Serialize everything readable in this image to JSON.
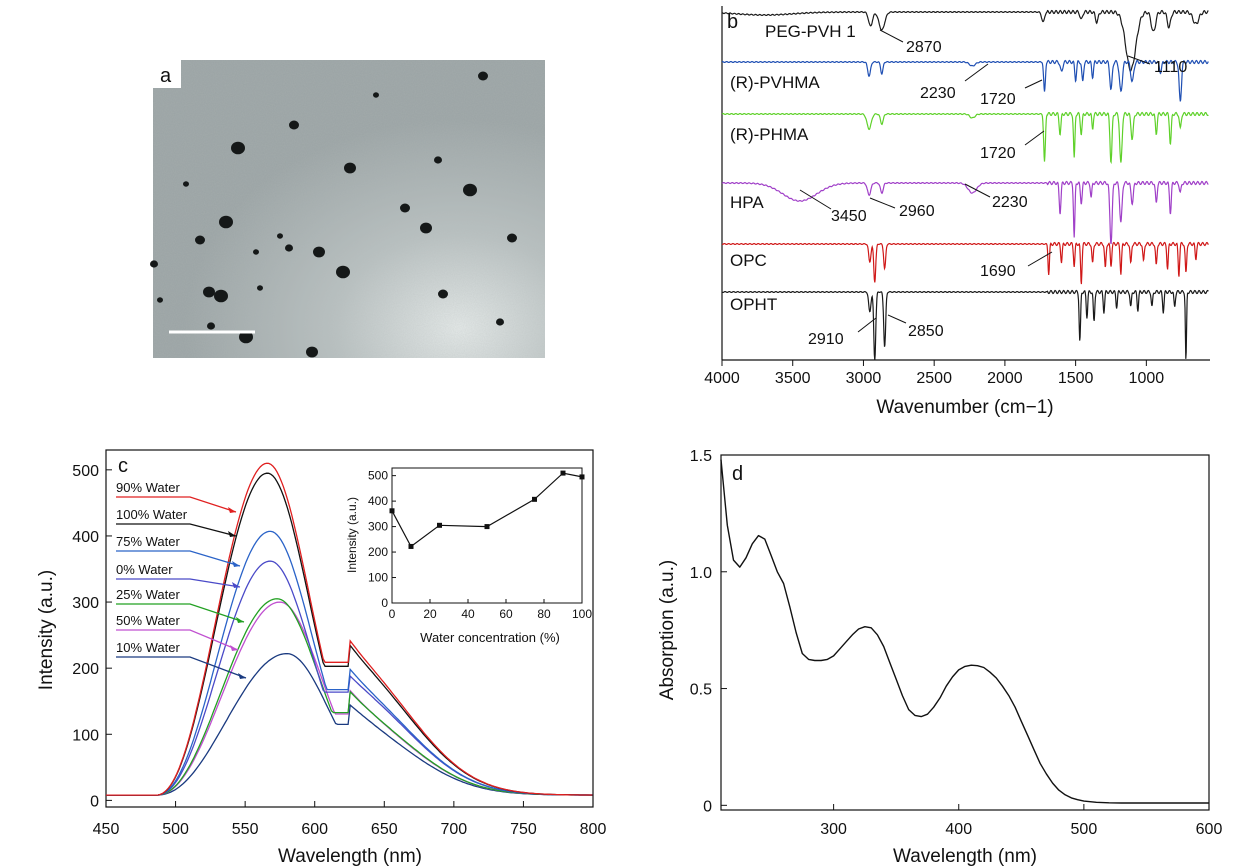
{
  "chart_data": [
    {
      "panel": "a",
      "type": "image",
      "description_label": "a",
      "particles": [
        [
          376,
          95
        ],
        [
          294,
          125
        ],
        [
          238,
          148
        ],
        [
          438,
          160
        ],
        [
          350,
          168
        ],
        [
          186,
          184
        ],
        [
          405,
          208
        ],
        [
          226,
          222
        ],
        [
          289,
          248
        ],
        [
          319,
          252
        ],
        [
          256,
          252
        ],
        [
          512,
          238
        ],
        [
          343,
          272
        ],
        [
          154,
          264
        ],
        [
          209,
          292
        ],
        [
          160,
          300
        ],
        [
          443,
          294
        ],
        [
          246,
          337
        ],
        [
          211,
          326
        ],
        [
          312,
          352
        ],
        [
          280,
          236
        ],
        [
          483,
          76
        ],
        [
          221,
          296
        ],
        [
          500,
          322
        ],
        [
          426,
          228
        ],
        [
          260,
          288
        ],
        [
          200,
          240
        ],
        [
          470,
          190
        ]
      ]
    },
    {
      "panel": "b",
      "type": "line",
      "label": "b",
      "xlabel": "Wavenumber (cm−1)",
      "xlim": [
        4000,
        550
      ],
      "xticks": [
        4000,
        3500,
        3000,
        2500,
        2000,
        1500,
        1000
      ],
      "series": [
        {
          "name": "PEG-PVH 1",
          "color": "#1a1a1a",
          "labels": [
            "2870",
            "1110"
          ]
        },
        {
          "name": "(R)-PVHMA",
          "color": "#1f4fb3",
          "labels": [
            "2230",
            "1720"
          ]
        },
        {
          "name": "(R)-PHMA",
          "color": "#5fd12a",
          "labels": [
            "1720"
          ]
        },
        {
          "name": "HPA",
          "color": "#a040c8",
          "labels": [
            "3450",
            "2960",
            "2230"
          ]
        },
        {
          "name": "OPC",
          "color": "#d01818",
          "labels": [
            "1690"
          ]
        },
        {
          "name": "OPHT",
          "color": "#1a1a1a",
          "labels": [
            "2910",
            "2850"
          ]
        }
      ]
    },
    {
      "panel": "c",
      "type": "line",
      "label": "c",
      "xlabel": "Wavelength (nm)",
      "ylabel": "Intensity (a.u.)",
      "xlim": [
        450,
        800
      ],
      "ylim": [
        0,
        510
      ],
      "xticks": [
        450,
        500,
        550,
        600,
        650,
        700,
        750,
        800
      ],
      "yticks": [
        0,
        100,
        200,
        300,
        400,
        500
      ],
      "series": [
        {
          "name": "90% Water",
          "color": "#e02020",
          "peak": 510,
          "peak_x": 566,
          "shoulder": 0.4
        },
        {
          "name": "100% Water",
          "color": "#111111",
          "peak": 495,
          "peak_x": 566,
          "shoulder": 0.4
        },
        {
          "name": "75% Water",
          "color": "#2a63c8",
          "peak": 407,
          "peak_x": 568,
          "shoulder": 0.4
        },
        {
          "name": "0% Water",
          "color": "#4a4ac8",
          "peak": 362,
          "peak_x": 568,
          "shoulder": 0.44
        },
        {
          "name": "25% Water",
          "color": "#22a022",
          "peak": 305,
          "peak_x": 573,
          "shoulder": 0.42
        },
        {
          "name": "50% Water",
          "color": "#c050d0",
          "peak": 300,
          "peak_x": 575,
          "shoulder": 0.42
        },
        {
          "name": "10% Water",
          "color": "#1a3a80",
          "peak": 222,
          "peak_x": 580,
          "shoulder": 0.5
        }
      ],
      "inset": {
        "xlabel": "Water concentration (%)",
        "ylabel": "Intensity (a.u.)",
        "x": [
          0,
          10,
          25,
          50,
          75,
          90,
          100
        ],
        "y": [
          362,
          222,
          305,
          300,
          407,
          510,
          495
        ],
        "xlim": [
          0,
          100
        ],
        "ylim": [
          0,
          500
        ],
        "xticks": [
          0,
          20,
          40,
          60,
          80,
          100
        ],
        "yticks": [
          0,
          50,
          100,
          150,
          200,
          250,
          300,
          350,
          400,
          450,
          500
        ]
      }
    },
    {
      "panel": "d",
      "type": "line",
      "label": "d",
      "xlabel": "Wavelength (nm)",
      "ylabel": "Absorption (a.u.)",
      "xlim": [
        210,
        600
      ],
      "ylim": [
        -0.02,
        1.5
      ],
      "xticks": [
        300,
        400,
        500,
        600
      ],
      "yticks": [
        0,
        0.5,
        1.0,
        1.5
      ],
      "ytick_labels": [
        "0",
        "0.5",
        "1.0",
        "1.5"
      ],
      "x": [
        210,
        215,
        220,
        225,
        230,
        235,
        240,
        245,
        250,
        255,
        260,
        265,
        270,
        275,
        280,
        285,
        290,
        295,
        300,
        305,
        310,
        315,
        320,
        325,
        330,
        335,
        340,
        345,
        350,
        355,
        360,
        365,
        370,
        375,
        380,
        385,
        390,
        395,
        400,
        405,
        410,
        415,
        420,
        425,
        430,
        435,
        440,
        445,
        450,
        455,
        460,
        465,
        470,
        475,
        480,
        485,
        490,
        495,
        500,
        510,
        520,
        530,
        540,
        560,
        580,
        600
      ],
      "y": [
        1.48,
        1.2,
        1.05,
        1.02,
        1.06,
        1.12,
        1.155,
        1.14,
        1.07,
        1.0,
        0.95,
        0.85,
        0.74,
        0.65,
        0.625,
        0.62,
        0.62,
        0.625,
        0.64,
        0.67,
        0.7,
        0.73,
        0.755,
        0.765,
        0.76,
        0.73,
        0.68,
        0.61,
        0.54,
        0.47,
        0.41,
        0.385,
        0.38,
        0.39,
        0.42,
        0.46,
        0.51,
        0.55,
        0.58,
        0.595,
        0.6,
        0.598,
        0.59,
        0.57,
        0.545,
        0.51,
        0.47,
        0.42,
        0.36,
        0.3,
        0.24,
        0.18,
        0.135,
        0.095,
        0.065,
        0.045,
        0.032,
        0.024,
        0.018,
        0.013,
        0.011,
        0.01,
        0.01,
        0.01,
        0.01,
        0.01
      ]
    }
  ]
}
